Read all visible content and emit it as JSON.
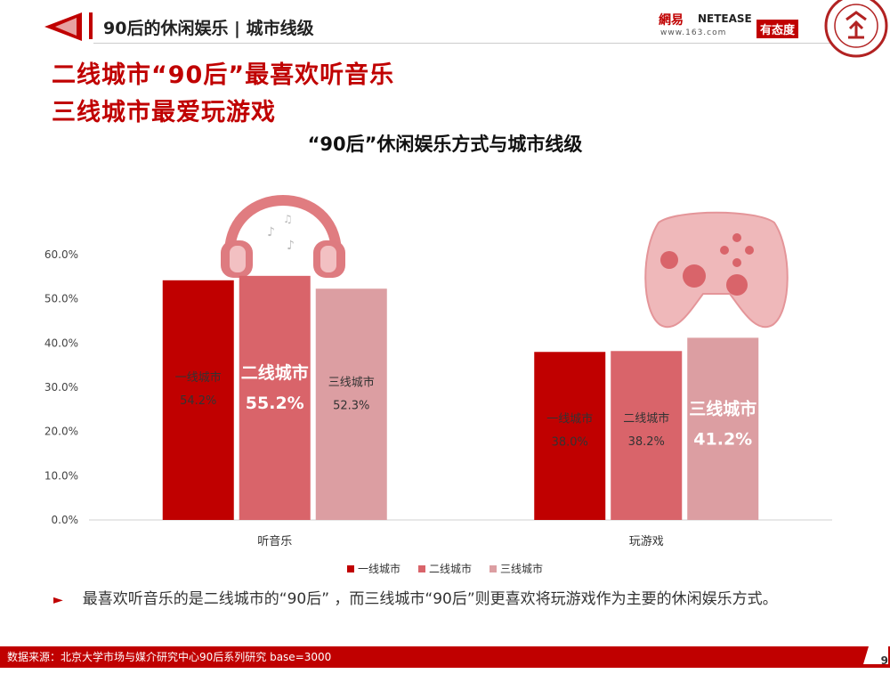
{
  "header": {
    "section_title": "90后的休闲娱乐 | 城市线级",
    "brand_cn": "網易",
    "brand_en": "NETEASE",
    "brand_url": "www.163.com",
    "brand_tag": "有态度",
    "accent": "#c00000"
  },
  "headline": {
    "line1": "二线城市“90后”最喜欢听音乐",
    "line2": "三线城市最爱玩游戏"
  },
  "chart_data": {
    "type": "bar",
    "title": "“90后”休闲娱乐方式与城市线级",
    "categories": [
      "听音乐",
      "玩游戏"
    ],
    "series": [
      {
        "name": "一线城市",
        "values": [
          54.2,
          38.0
        ],
        "color": "#c00000"
      },
      {
        "name": "二线城市",
        "values": [
          55.2,
          38.2
        ],
        "color": "#d9646a"
      },
      {
        "name": "三线城市",
        "values": [
          52.3,
          41.2
        ],
        "color": "#dc9ea2"
      }
    ],
    "value_labels": [
      [
        "54.2%",
        "38.0%"
      ],
      [
        "55.2%",
        "38.2%"
      ],
      [
        "52.3%",
        "41.2%"
      ]
    ],
    "ylim": [
      0,
      60
    ],
    "yticks": [
      "0.0%",
      "10.0%",
      "20.0%",
      "30.0%",
      "40.0%",
      "50.0%",
      "60.0%"
    ],
    "legend_position": "bottom",
    "grid": false
  },
  "note": {
    "bullet": "►",
    "text": "最喜欢听音乐的是二线城市的“90后” ，而三线城市“90后”则更喜欢将玩游戏作为主要的休闲娱乐方式。"
  },
  "footer": {
    "source": "数据来源：北京大学市场与媒介研究中心90后系列研究 base=3000",
    "page_number": "9"
  }
}
